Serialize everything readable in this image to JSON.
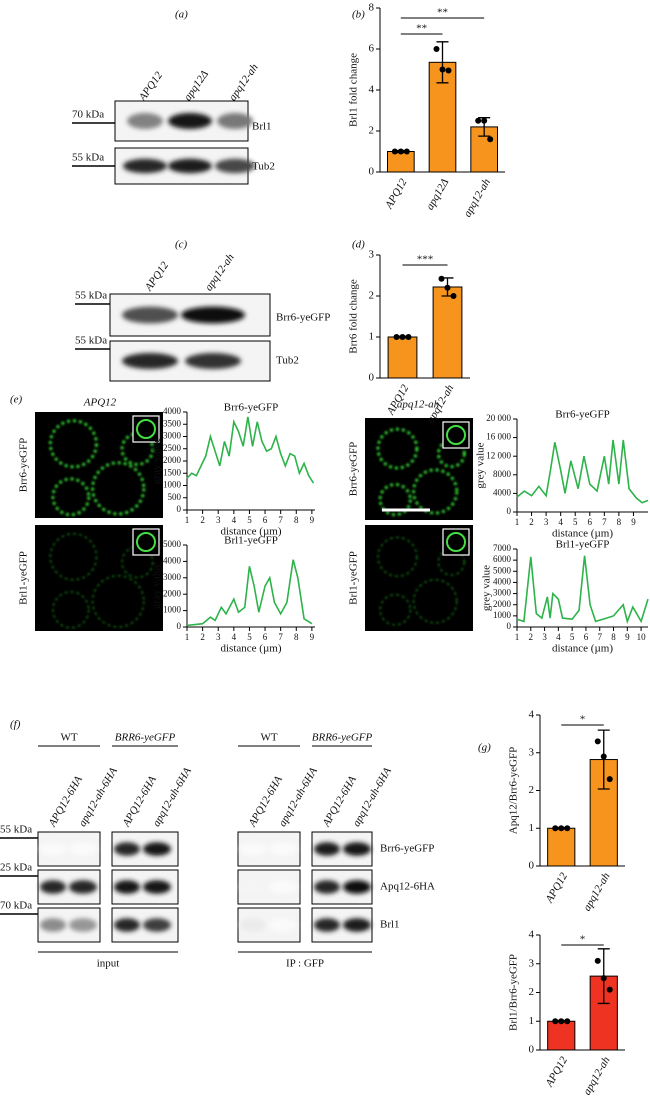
{
  "panel_labels": [
    "(a)",
    "(b)",
    "(c)",
    "(d)",
    "(e)",
    "(f)",
    "(g)"
  ],
  "blot_a": {
    "lanes": [
      "APQ12",
      "apq12Δ",
      "apq12-ah"
    ],
    "markers": [
      "70 kDa",
      "55 kDa"
    ],
    "bands": [
      "Brl1",
      "Tub2"
    ]
  },
  "blot_c": {
    "lanes": [
      "APQ12",
      "apq12-ah"
    ],
    "markers": [
      "55 kDa",
      "55 kDa"
    ],
    "bands": [
      "Brr6-yeGFP",
      "Tub2"
    ]
  },
  "microscopy": {
    "strains": [
      "APQ12",
      "apq12-ah"
    ],
    "channels": [
      "Brr6-yeGFP",
      "Brl1-yeGFP"
    ]
  },
  "blot_f": {
    "groups": [
      "WT",
      "BRR6-yeGFP",
      "WT",
      "BRR6-yeGFP"
    ],
    "lanes": [
      "APQ12-6HA",
      "apq12-ah-6HA"
    ],
    "markers": [
      "55 kDa",
      "25 kDa",
      "70 kDa"
    ],
    "bands": [
      "Brr6-yeGFP",
      "Apq12-6HA",
      "Brl1"
    ],
    "fractions": [
      "input",
      "IP : GFP"
    ]
  },
  "chart_data": [
    {
      "type": "bar",
      "ylabel": "Brl1 fold change",
      "categories": [
        "APQ12",
        "apq12Δ",
        "apq12-ah"
      ],
      "values": [
        1,
        5.35,
        2.2
      ],
      "errors": [
        0.05,
        1.0,
        0.45
      ],
      "points": [
        [
          1,
          1,
          1
        ],
        [
          6.0,
          5.0,
          4.95
        ],
        [
          2.5,
          2.5,
          1.6
        ]
      ],
      "significance": [
        "**",
        "**"
      ],
      "color": "#f7941d",
      "ylim": [
        0,
        8
      ],
      "yticks": [
        0,
        2,
        4,
        6,
        8
      ]
    },
    {
      "type": "bar",
      "ylabel": "Brr6 fold change",
      "categories": [
        "APQ12",
        "apq12-ah"
      ],
      "values": [
        1,
        2.22
      ],
      "errors": [
        0.02,
        0.22
      ],
      "points": [
        [
          1,
          1,
          1
        ],
        [
          2.42,
          2.2,
          2.0
        ]
      ],
      "significance": [
        "***"
      ],
      "color": "#f7941d",
      "ylim": [
        0,
        3
      ],
      "yticks": [
        0,
        1,
        2,
        3
      ]
    },
    {
      "type": "line",
      "title": "Brr6-yeGFP",
      "ylabel": "gray value",
      "xlabel": "distance (µm)",
      "color": "#2db34a",
      "x": [
        1,
        1.3,
        1.6,
        1.9,
        2.2,
        2.5,
        2.8,
        3.1,
        3.4,
        3.7,
        4.0,
        4.3,
        4.6,
        4.9,
        5.2,
        5.5,
        5.8,
        6.1,
        6.4,
        6.7,
        7.0,
        7.3,
        7.6,
        7.9,
        8.2,
        8.5,
        8.8,
        9.1
      ],
      "values": [
        1300,
        1500,
        1400,
        1800,
        2200,
        3000,
        2400,
        1800,
        2800,
        2200,
        3600,
        3200,
        2600,
        3800,
        2600,
        3600,
        2800,
        2400,
        2500,
        3000,
        2300,
        1800,
        2300,
        2200,
        1500,
        1900,
        1400,
        1100
      ],
      "xlim": [
        1,
        9.2
      ],
      "xticks": [
        1,
        2,
        3,
        4,
        5,
        6,
        7,
        8,
        9
      ],
      "ylim": [
        0,
        4000
      ],
      "yticks": [
        0,
        500,
        1000,
        1500,
        2000,
        2500,
        3000,
        3500,
        4000
      ]
    },
    {
      "type": "line",
      "title": "Brl1-yeGFP",
      "ylabel": "gray value",
      "xlabel": "distance (µm)",
      "color": "#2db34a",
      "x": [
        1,
        1.5,
        2,
        2.5,
        2.8,
        3.2,
        3.5,
        4,
        4.3,
        4.7,
        5,
        5.3,
        5.6,
        6,
        6.3,
        6.6,
        7,
        7.4,
        7.8,
        8.1,
        8.5,
        9
      ],
      "values": [
        100,
        150,
        200,
        600,
        400,
        1200,
        800,
        1700,
        900,
        1200,
        3700,
        2500,
        900,
        2500,
        3000,
        1500,
        800,
        1500,
        4100,
        3000,
        500,
        200
      ],
      "xlim": [
        1,
        9.2
      ],
      "xticks": [
        1,
        2,
        3,
        4,
        5,
        6,
        7,
        8,
        9
      ],
      "ylim": [
        0,
        5000
      ],
      "yticks": [
        0,
        1000,
        2000,
        3000,
        4000,
        5000
      ]
    },
    {
      "type": "line",
      "title": "Brr6-yeGFP",
      "ylabel": "grey value",
      "xlabel": "distance (µm)",
      "color": "#2db34a",
      "x": [
        1,
        1.5,
        2,
        2.5,
        3,
        3.3,
        3.6,
        4,
        4.3,
        4.7,
        5.2,
        5.6,
        6,
        6.5,
        7,
        7.3,
        7.6,
        8,
        8.3,
        8.7,
        9.2,
        9.6,
        10
      ],
      "values": [
        3200,
        4500,
        3500,
        5500,
        3500,
        9000,
        15000,
        9000,
        4000,
        11000,
        5000,
        12000,
        6000,
        4500,
        12000,
        6000,
        15500,
        6000,
        15500,
        5000,
        3000,
        2000,
        2500
      ],
      "xlim": [
        1,
        10
      ],
      "xticks": [
        1,
        2,
        3,
        4,
        5,
        6,
        7,
        8,
        9
      ],
      "ylim": [
        0,
        20000
      ],
      "yticks": [
        0,
        4000,
        8000,
        {
          "value": 12000,
          "label": "12 000"
        },
        {
          "value": 16000,
          "label": "16 000"
        },
        {
          "value": 20000,
          "label": "20 000"
        }
      ]
    },
    {
      "type": "line",
      "title": "Brl1-yeGFP",
      "ylabel": "grey value",
      "xlabel": "distance (µm)",
      "color": "#2db34a",
      "x": [
        1,
        1.5,
        2,
        2.4,
        2.8,
        3.2,
        3.4,
        3.6,
        4,
        4.3,
        5,
        5.5,
        5.9,
        6.3,
        6.7,
        7.5,
        8,
        8.7,
        9,
        9.4,
        10,
        10.5
      ],
      "values": [
        700,
        500,
        6300,
        1200,
        800,
        2700,
        800,
        3000,
        2500,
        800,
        700,
        1500,
        6400,
        2000,
        500,
        800,
        1000,
        2000,
        500,
        1800,
        500,
        2500
      ],
      "xlim": [
        1,
        10.5
      ],
      "xticks": [
        1,
        2,
        3,
        4,
        5,
        6,
        7,
        8,
        9,
        10
      ],
      "ylim": [
        0,
        7000
      ],
      "yticks": [
        0,
        1000,
        2000,
        3000,
        4000,
        5000,
        6000,
        7000
      ]
    },
    {
      "type": "bar",
      "ylabel": "Apq12/Brr6-yeGFP",
      "categories": [
        "APQ12",
        "apq12-ah"
      ],
      "values": [
        1,
        2.82
      ],
      "errors": [
        0.02,
        0.78
      ],
      "points": [
        [
          1,
          1,
          1
        ],
        [
          3.3,
          2.9,
          2.3
        ]
      ],
      "significance": [
        "*"
      ],
      "color": "#f7941d",
      "ylim": [
        0,
        4
      ],
      "yticks": [
        0,
        1,
        2,
        3,
        4
      ]
    },
    {
      "type": "bar",
      "ylabel": "Brl1/Brr6-yeGFP",
      "categories": [
        "APQ12",
        "apq12-ah"
      ],
      "values": [
        1,
        2.57
      ],
      "errors": [
        0.02,
        0.95
      ],
      "points": [
        [
          1,
          1,
          1
        ],
        [
          3.1,
          2.5,
          2.1
        ]
      ],
      "significance": [
        "*"
      ],
      "color": "#ee3322",
      "ylim": [
        0,
        4
      ],
      "yticks": [
        0,
        1,
        2,
        3,
        4
      ]
    }
  ]
}
